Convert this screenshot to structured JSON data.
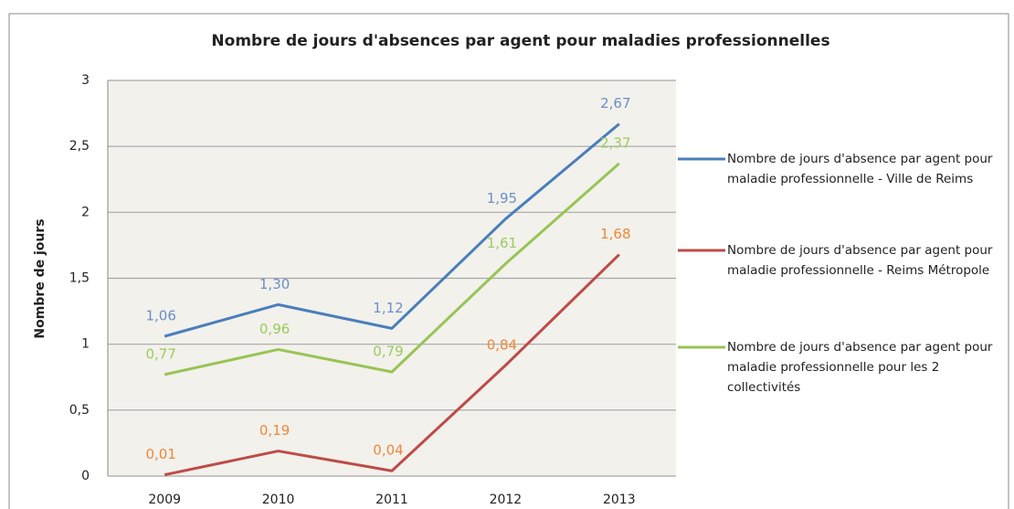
{
  "chart_data": {
    "type": "line",
    "title": "Nombre de jours d'absences par agent pour maladies professionnelles",
    "ylabel": "Nombre de jours",
    "categories": [
      "2009",
      "2010",
      "2011",
      "2012",
      "2013"
    ],
    "series": [
      {
        "name": "Nombre de jours d'absence par agent pour maladie professionnelle - Ville de Reims",
        "color": "#4a7ebb",
        "label_color": "#6a8fc8",
        "values": [
          1.06,
          1.3,
          1.12,
          1.95,
          2.67
        ],
        "value_labels": [
          "1,06",
          "1,30",
          "1,12",
          "1,95",
          "2,67"
        ]
      },
      {
        "name": "Nombre de jours d'absence par agent pour maladie professionnelle - Reims Métropole",
        "color": "#be4b48",
        "label_color": "#ee8838",
        "values": [
          0.01,
          0.19,
          0.04,
          0.84,
          1.68
        ],
        "value_labels": [
          "0,01",
          "0,19",
          "0,04",
          "0,84",
          "1,68"
        ]
      },
      {
        "name": "Nombre de jours d'absence par agent pour maladie professionnelle pour les 2 collectivités",
        "color": "#98c454",
        "label_color": "#9bcb5a",
        "values": [
          0.77,
          0.96,
          0.79,
          1.61,
          2.37
        ],
        "value_labels": [
          "0,77",
          "0,96",
          "0,79",
          "1,61",
          "2,37"
        ]
      }
    ],
    "ylim": [
      0,
      3
    ],
    "yticks": [
      0,
      {
        "value": 0.5,
        "label": "0,5"
      },
      1,
      {
        "value": 1.5,
        "label": "1,5"
      },
      2,
      {
        "value": 2.5,
        "label": "2,5"
      },
      3
    ],
    "grid": true,
    "legend": "right"
  }
}
